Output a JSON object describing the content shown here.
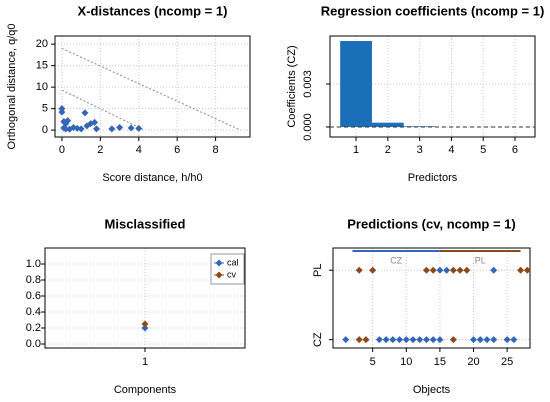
{
  "chart_data": [
    {
      "type": "scatter",
      "title": "X-distances (ncomp = 1)",
      "xlabel": "Score distance, h/h0",
      "ylabel": "Orthogonal distance, q/q0",
      "xlim": [
        -0.36,
        9.79
      ],
      "ylim": [
        -1.6,
        21.9
      ],
      "xticks": [
        0,
        2,
        4,
        6,
        8
      ],
      "yticks": [
        0,
        5,
        10,
        15,
        20
      ],
      "grid": true,
      "color": "#3465b8",
      "x": [
        0,
        0,
        0.1,
        0.2,
        0.3,
        0.1,
        0.2,
        0.4,
        0.6,
        0.8,
        1,
        1.2,
        1.3,
        1.5,
        1.7,
        1.8,
        2.6,
        3,
        3.6,
        4
      ],
      "y": [
        5,
        4.2,
        2,
        1.5,
        2.2,
        0.5,
        0.3,
        0.2,
        0.6,
        0.4,
        0.3,
        4,
        1,
        1.5,
        1.8,
        0.3,
        0.3,
        0.6,
        0.5,
        0.4
      ],
      "lines": [
        {
          "x": [
            0,
            9.3
          ],
          "y": [
            19,
            0
          ]
        },
        {
          "x": [
            0,
            4.3
          ],
          "y": [
            9.3,
            0
          ]
        }
      ]
    },
    {
      "type": "bar",
      "title": "Regression coefficients (ncomp = 1)",
      "xlabel": "Predictors",
      "ylabel": "Coefficients (CZ)",
      "xlim": [
        0.18,
        6.63
      ],
      "ylim": [
        -0.0007,
        0.00635
      ],
      "xticks": [
        1,
        2,
        3,
        4,
        5,
        6
      ],
      "yticks": [
        {
          "value": 0,
          "label": "0.000"
        },
        {
          "value": 0.003,
          "label": "0.003"
        }
      ],
      "grid": true,
      "color": "#1a6fb8",
      "x": [
        1,
        2,
        3,
        4,
        5,
        6
      ],
      "values": [
        0.006,
        0.0003,
        5e-05,
        0,
        0,
        0
      ],
      "hline": 0
    },
    {
      "type": "scatter",
      "title": "Misclassified",
      "xlabel": "Components",
      "xlim": [
        0.4,
        1.6
      ],
      "ylim": [
        -0.05,
        1.2
      ],
      "xticks": [
        1
      ],
      "yticks": [
        {
          "value": 0,
          "label": "0.0"
        },
        0.2,
        0.4,
        0.6,
        0.8,
        {
          "value": 1,
          "label": "1.0"
        }
      ],
      "grid": true,
      "legend": "topright",
      "series": [
        {
          "name": "cal",
          "color": "#3465b8",
          "x": [
            1
          ],
          "values": [
            0.2
          ]
        },
        {
          "name": "cv",
          "color": "#8b4a1c",
          "x": [
            1
          ],
          "values": [
            0.25
          ]
        }
      ]
    },
    {
      "type": "strip",
      "title": "Predictions (cv, ncomp = 1)",
      "xlabel": "Objects",
      "xlim": [
        -0.9,
        28.4
      ],
      "ylim": [
        -0.12,
        1.32
      ],
      "xticks": [
        5,
        10,
        15,
        20,
        25
      ],
      "ycategories": [
        "CZ",
        "PL"
      ],
      "grid": true,
      "groups": [
        {
          "label": "CZ",
          "from": 2,
          "to": 15,
          "color": "#3465b8"
        },
        {
          "label": "PL",
          "from": 15,
          "to": 27,
          "color": "#8b4a1c"
        }
      ],
      "points": [
        {
          "color": "#3465b8",
          "x": [
            15,
            16,
            23,
            1,
            6,
            7,
            8,
            9,
            10,
            11,
            12,
            13,
            14,
            15,
            20,
            21,
            22,
            23,
            25,
            26
          ],
          "y": [
            1,
            1,
            1,
            0,
            0,
            0,
            0,
            0,
            0,
            0,
            0,
            0,
            0,
            0,
            0,
            0,
            0,
            0,
            0,
            0
          ]
        },
        {
          "color": "#8b4a1c",
          "x": [
            3,
            5,
            13,
            14,
            17,
            18,
            19,
            27,
            28,
            3,
            4,
            17
          ],
          "y": [
            1,
            1,
            1,
            1,
            1,
            1,
            1,
            1,
            1,
            0,
            0,
            0
          ]
        }
      ]
    }
  ]
}
